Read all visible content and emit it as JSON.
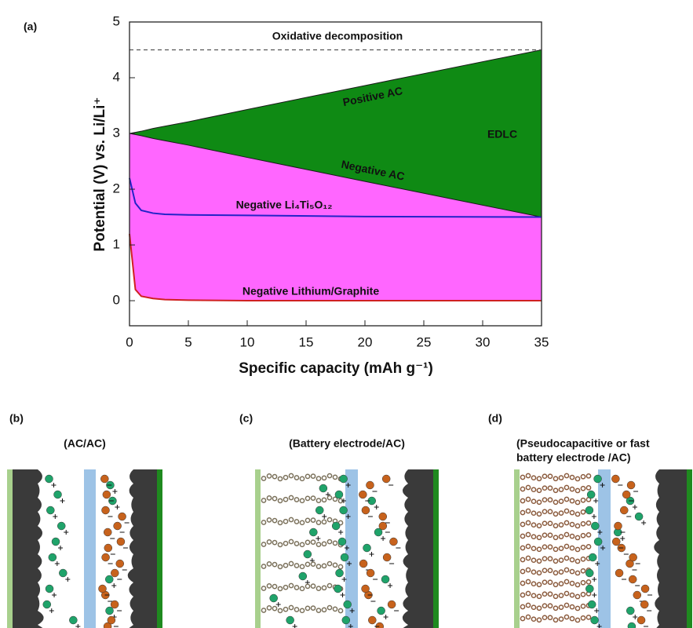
{
  "chart_data": {
    "type": "area",
    "panel_label": "(a)",
    "xlabel": "Specific capacity (mAh g⁻¹)",
    "ylabel": "Potential (V) vs. Li/Li⁺",
    "x": [
      0,
      0.5,
      1,
      2,
      3,
      5,
      10,
      20,
      35
    ],
    "series": [
      {
        "name": "Positive AC",
        "color": "#1a1a1a",
        "values": [
          3,
          3.02,
          3.04,
          3.09,
          3.13,
          3.21,
          3.43,
          3.86,
          4.5
        ]
      },
      {
        "name": "Negative AC",
        "color": "#1a1a1a",
        "values": [
          3,
          2.98,
          2.96,
          2.91,
          2.87,
          2.79,
          2.57,
          2.14,
          1.5
        ]
      },
      {
        "name": "Negative Li₄Ti₅O₁₂",
        "color": "#2323c8",
        "values": [
          2.2,
          1.75,
          1.62,
          1.57,
          1.55,
          1.54,
          1.53,
          1.51,
          1.5
        ]
      },
      {
        "name": "Negative Lithium/Graphite",
        "color": "#d02020",
        "values": [
          1.2,
          0.2,
          0.08,
          0.04,
          0.02,
          0.01,
          0,
          0,
          0
        ]
      }
    ],
    "fills": [
      {
        "between": [
          0,
          1
        ],
        "color": "#0f8a14"
      },
      {
        "between": [
          1,
          3
        ],
        "color": "#ff66ff"
      }
    ],
    "reference_line": {
      "value": 4.5,
      "label": "Oxidative decomposition"
    },
    "annotations": [
      "EDLC"
    ],
    "xlim": [
      0,
      35
    ],
    "xticks": [
      0,
      5,
      10,
      15,
      20,
      25,
      30,
      35
    ],
    "ylim": [
      -0.45,
      5
    ],
    "yticks": [
      0,
      1,
      2,
      3,
      4,
      5
    ]
  },
  "panels": [
    {
      "label": "(b)",
      "caption": [
        "(AC/AC)"
      ]
    },
    {
      "label": "(c)",
      "caption": [
        "(Battery electrode/AC)"
      ]
    },
    {
      "label": "(d)",
      "caption": [
        "(Pseudocapacitive or fast",
        "battery electrode /AC)"
      ]
    }
  ]
}
